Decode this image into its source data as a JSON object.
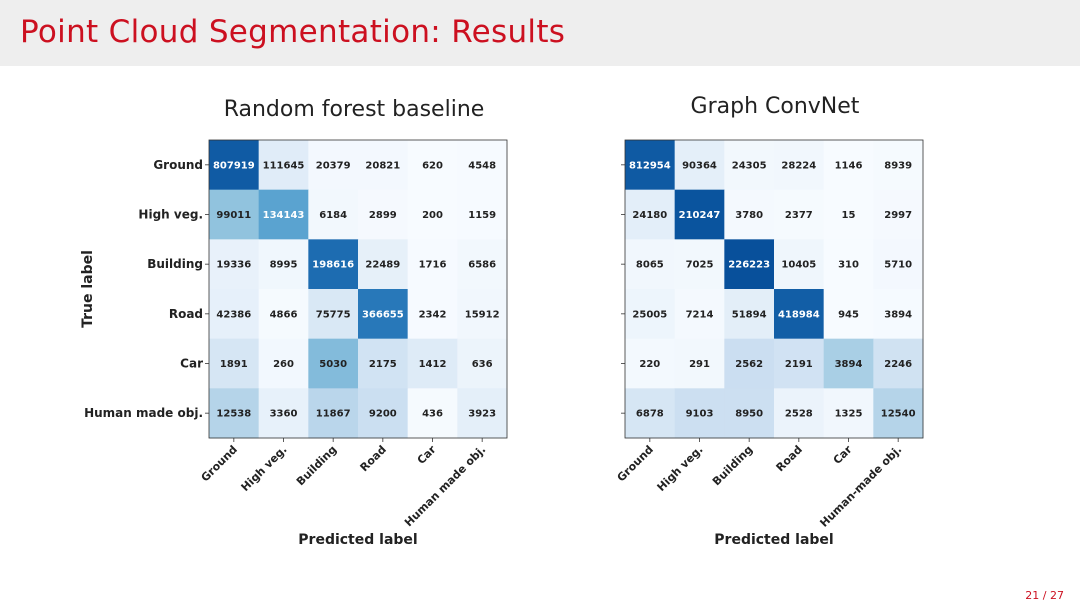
{
  "slide": {
    "title": "Point Cloud Segmentation: Results",
    "page_number": "21 / 27"
  },
  "chart_data": [
    {
      "type": "heatmap",
      "title": "Random forest baseline",
      "xlabel": "Predicted label",
      "ylabel": "True label",
      "row_labels": [
        "Ground",
        "High veg.",
        "Building",
        "Road",
        "Car",
        "Human made obj."
      ],
      "col_labels": [
        "Ground",
        "High veg.",
        "Building",
        "Road",
        "Car",
        "Human made obj."
      ],
      "values": [
        [
          807919,
          111645,
          20379,
          20821,
          620,
          4548
        ],
        [
          99011,
          134143,
          6184,
          2899,
          200,
          1159
        ],
        [
          19336,
          8995,
          198616,
          22489,
          1716,
          6586
        ],
        [
          42386,
          4866,
          75775,
          366655,
          2342,
          15912
        ],
        [
          1891,
          260,
          5030,
          2175,
          1412,
          636
        ],
        [
          12538,
          3360,
          11867,
          9200,
          436,
          3923
        ]
      ],
      "colormap": "Blues",
      "normalization": "row"
    },
    {
      "type": "heatmap",
      "title": "Graph ConvNet",
      "xlabel": "Predicted label",
      "ylabel": "",
      "row_labels": [],
      "col_labels": [
        "Ground",
        "High veg.",
        "Building",
        "Road",
        "Car",
        "Human-made obj."
      ],
      "values": [
        [
          812954,
          90364,
          24305,
          28224,
          1146,
          8939
        ],
        [
          24180,
          210247,
          3780,
          2377,
          15,
          2997
        ],
        [
          8065,
          7025,
          226223,
          10405,
          310,
          5710
        ],
        [
          25005,
          7214,
          51894,
          418984,
          945,
          3894
        ],
        [
          220,
          291,
          2562,
          2191,
          3894,
          2246
        ],
        [
          6878,
          9103,
          8950,
          2528,
          1325,
          12540
        ]
      ],
      "colormap": "Blues",
      "normalization": "row"
    }
  ]
}
